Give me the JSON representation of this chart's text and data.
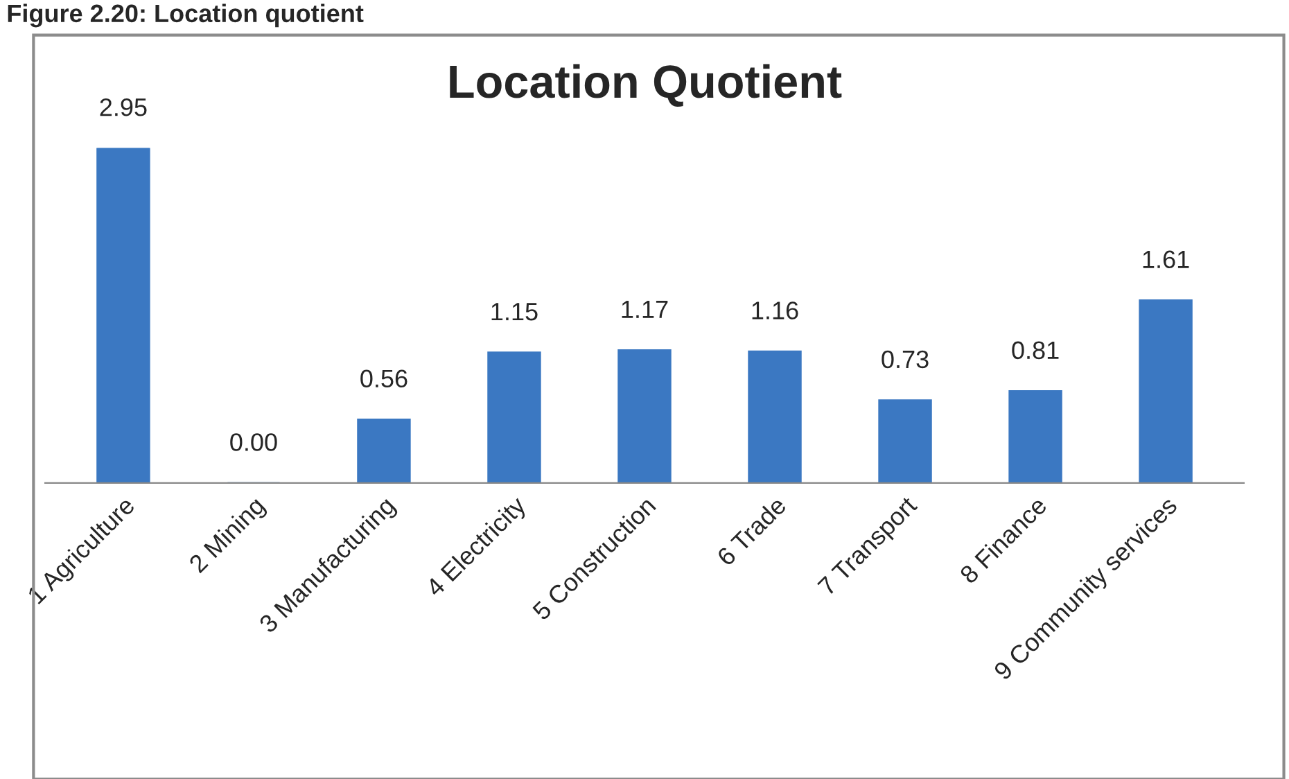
{
  "chart_data": {
    "type": "bar",
    "title": "Location Quotient",
    "annotations": [
      "Figure 2.20: Location quotient"
    ],
    "categories": [
      "1 Agriculture",
      "2 Mining",
      "3 Manufacturing",
      "4 Electricity",
      "5 Construction",
      "6 Trade",
      "7 Transport",
      "8 Finance",
      "9 Community services"
    ],
    "values": [
      2.95,
      0.0,
      0.56,
      1.15,
      1.17,
      1.16,
      0.73,
      0.81,
      1.61
    ],
    "value_labels": [
      "2.95",
      "0.00",
      "0.56",
      "1.15",
      "1.17",
      "1.16",
      "0.73",
      "0.81",
      "1.61"
    ],
    "color": "#3b78c2",
    "grid": false,
    "legend": false
  }
}
